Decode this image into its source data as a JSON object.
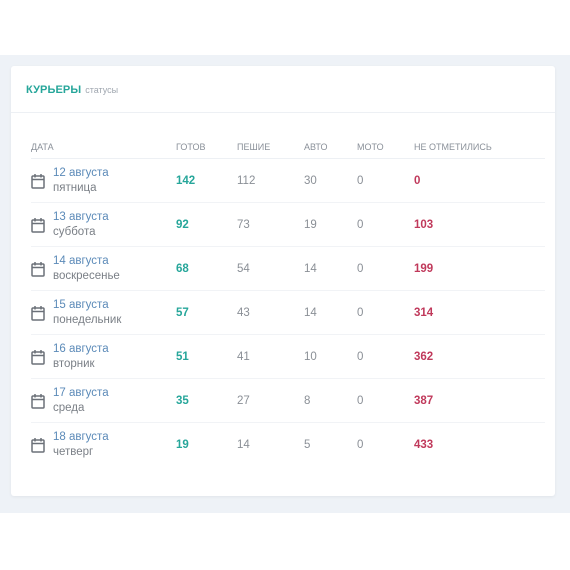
{
  "header": {
    "title": "КУРЬЕРЫ",
    "subtitle": "статусы"
  },
  "table": {
    "columns": [
      "ДАТА",
      "ГОТОВ",
      "ПЕШИЕ",
      "АВТО",
      "МОТО",
      "НЕ ОТМЕТИЛИСЬ"
    ],
    "rows": [
      {
        "date": "12 августа",
        "weekday": "пятница",
        "ready": "142",
        "walking": "112",
        "auto": "30",
        "moto": "0",
        "missed": "0"
      },
      {
        "date": "13 августа",
        "weekday": "суббота",
        "ready": "92",
        "walking": "73",
        "auto": "19",
        "moto": "0",
        "missed": "103"
      },
      {
        "date": "14 августа",
        "weekday": "воскресенье",
        "ready": "68",
        "walking": "54",
        "auto": "14",
        "moto": "0",
        "missed": "199"
      },
      {
        "date": "15 августа",
        "weekday": "понедельник",
        "ready": "57",
        "walking": "43",
        "auto": "14",
        "moto": "0",
        "missed": "314"
      },
      {
        "date": "16 августа",
        "weekday": "вторник",
        "ready": "51",
        "walking": "41",
        "auto": "10",
        "moto": "0",
        "missed": "362"
      },
      {
        "date": "17 августа",
        "weekday": "среда",
        "ready": "35",
        "walking": "27",
        "auto": "8",
        "moto": "0",
        "missed": "387"
      },
      {
        "date": "18 августа",
        "weekday": "четверг",
        "ready": "19",
        "walking": "14",
        "auto": "5",
        "moto": "0",
        "missed": "433"
      }
    ]
  },
  "icons": {
    "date_icon": "calendar-icon"
  },
  "colors": {
    "accent": "#26a69a",
    "link": "#5b8ab8",
    "danger": "#c0395b",
    "background": "#eef2f7"
  }
}
